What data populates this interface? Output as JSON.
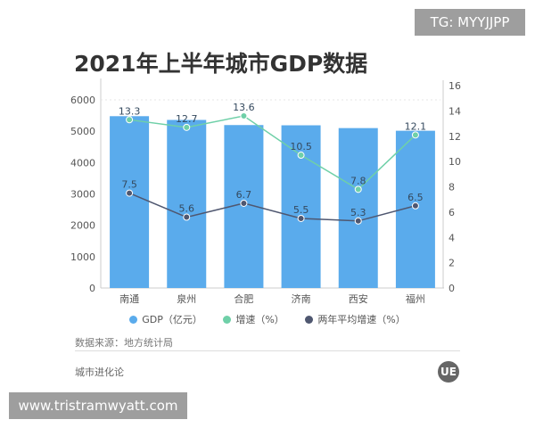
{
  "watermark_top": "TG: MYYJJPP",
  "watermark_bottom": "www.tristramwyatt.com",
  "source": "数据来源：地方统计局",
  "brand": "城市进化论",
  "logo": "UE",
  "chart_data": {
    "type": "bar",
    "title": "2021年上半年城市GDP数据",
    "categories": [
      "南通",
      "泉州",
      "合肥",
      "济南",
      "西安",
      "福州"
    ],
    "series": [
      {
        "name": "GDP（亿元）",
        "type": "bar",
        "axis": "left",
        "color": "#5aabec",
        "values": [
          5480,
          5360,
          5197,
          5189,
          5100,
          5015
        ]
      },
      {
        "name": "增速（%）",
        "type": "line",
        "axis": "right",
        "color": "#6fd0a8",
        "values": [
          13.3,
          12.7,
          13.6,
          10.5,
          7.8,
          12.1
        ]
      },
      {
        "name": "两年平均增速（%）",
        "type": "line",
        "axis": "right",
        "color": "#4f5770",
        "values": [
          7.5,
          5.6,
          6.7,
          5.5,
          5.3,
          6.5
        ]
      }
    ],
    "left_axis": {
      "ticks": [
        0,
        1000,
        2000,
        3000,
        4000,
        5000,
        6000
      ]
    },
    "right_axis": {
      "ticks": [
        0,
        2,
        4,
        6,
        8,
        10,
        12,
        14,
        16
      ],
      "ylim": [
        0,
        16
      ]
    },
    "legend": "bottom"
  }
}
